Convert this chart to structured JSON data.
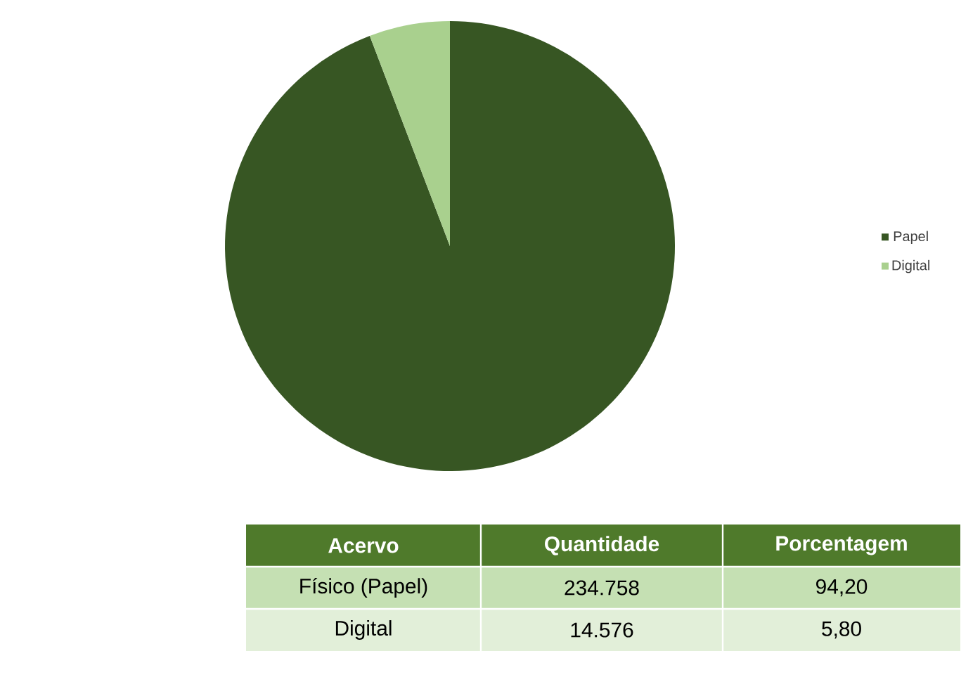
{
  "chart_data": {
    "type": "pie",
    "categories": [
      "Papel",
      "Digital"
    ],
    "values": [
      94.2,
      5.8
    ],
    "colors": [
      "#375623",
      "#a9d08e"
    ],
    "legend": "right",
    "annotations": [
      "Acervo",
      "Quantidade",
      "Porcentagem",
      "Físico (Papel)",
      "Digital",
      "234.758",
      "14.576",
      "94,20",
      "5,80"
    ]
  }
}
